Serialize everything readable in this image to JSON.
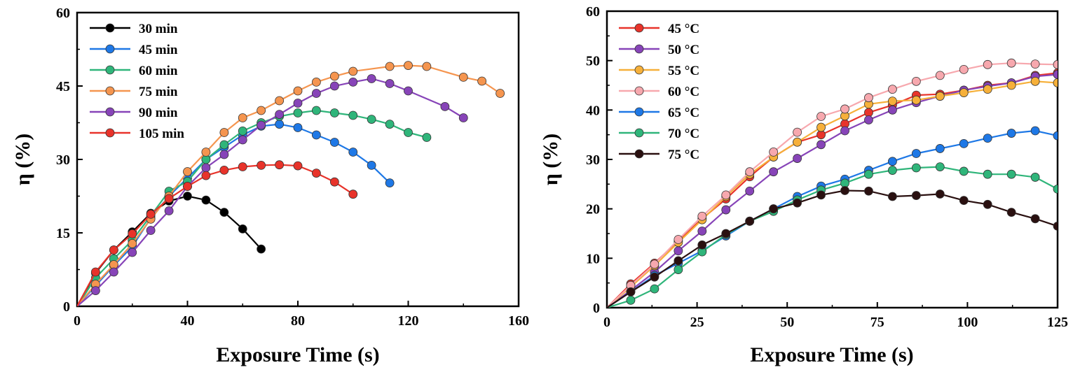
{
  "chart_data": [
    {
      "type": "line",
      "xlabel": "Exposure Time (s)",
      "ylabel": "η (%)",
      "xlim": [
        0,
        160
      ],
      "ylim": [
        0,
        60
      ],
      "xticks": [
        0,
        40,
        80,
        120,
        160
      ],
      "yticks": [
        0,
        15,
        30,
        45,
        60
      ],
      "grid": false,
      "legend_position": "top-left",
      "series": [
        {
          "name": "30 min",
          "color": "#000000",
          "points": [
            [
              0,
              0
            ],
            [
              6.7,
              6.8
            ],
            [
              13.3,
              11.5
            ],
            [
              20,
              15.2
            ],
            [
              26.7,
              19.0
            ],
            [
              33.3,
              21.5
            ],
            [
              40,
              22.5
            ],
            [
              46.7,
              21.7
            ],
            [
              53.3,
              19.2
            ],
            [
              60,
              15.8
            ],
            [
              66.7,
              11.7
            ]
          ]
        },
        {
          "name": "45 min",
          "color": "#1e78e6",
          "points": [
            [
              0,
              0
            ],
            [
              6.7,
              4.2
            ],
            [
              13.3,
              8.3
            ],
            [
              20,
              12.2
            ],
            [
              26.7,
              18.0
            ],
            [
              33.3,
              22.5
            ],
            [
              40,
              26.2
            ],
            [
              46.7,
              30.0
            ],
            [
              53.3,
              32.5
            ],
            [
              60,
              35.0
            ],
            [
              66.7,
              36.8
            ],
            [
              73.3,
              37.2
            ],
            [
              80,
              36.5
            ],
            [
              86.7,
              35.0
            ],
            [
              93.3,
              33.5
            ],
            [
              100,
              31.5
            ],
            [
              106.7,
              28.8
            ],
            [
              113.3,
              25.2
            ]
          ]
        },
        {
          "name": "60 min",
          "color": "#2fb57a",
          "points": [
            [
              0,
              0
            ],
            [
              6.7,
              5.8
            ],
            [
              13.3,
              9.7
            ],
            [
              20,
              13.5
            ],
            [
              26.7,
              18.5
            ],
            [
              33.3,
              23.5
            ],
            [
              40,
              25.5
            ],
            [
              46.7,
              30.0
            ],
            [
              53.3,
              33.0
            ],
            [
              60,
              35.8
            ],
            [
              66.7,
              37.5
            ],
            [
              73.3,
              38.8
            ],
            [
              80,
              39.5
            ],
            [
              86.7,
              40.0
            ],
            [
              93.3,
              39.5
            ],
            [
              100,
              39.0
            ],
            [
              106.7,
              38.2
            ],
            [
              113.3,
              37.2
            ],
            [
              120,
              35.5
            ],
            [
              126.7,
              34.5
            ]
          ]
        },
        {
          "name": "75 min",
          "color": "#f5954f",
          "points": [
            [
              0,
              0
            ],
            [
              6.7,
              4.5
            ],
            [
              13.3,
              8.5
            ],
            [
              20,
              12.8
            ],
            [
              26.7,
              17.8
            ],
            [
              33.3,
              22.5
            ],
            [
              40,
              27.5
            ],
            [
              46.7,
              31.5
            ],
            [
              53.3,
              35.5
            ],
            [
              60,
              38.5
            ],
            [
              66.7,
              40.0
            ],
            [
              73.3,
              42.0
            ],
            [
              80,
              44.0
            ],
            [
              86.7,
              45.8
            ],
            [
              93.3,
              47.0
            ],
            [
              100,
              48.0
            ],
            [
              113.3,
              49.0
            ],
            [
              120,
              49.2
            ],
            [
              126.7,
              49.0
            ],
            [
              140,
              46.8
            ],
            [
              146.7,
              46.0
            ],
            [
              153.3,
              43.5
            ]
          ]
        },
        {
          "name": "90 min",
          "color": "#8744b8",
          "points": [
            [
              0,
              0
            ],
            [
              6.7,
              3.2
            ],
            [
              13.3,
              7.0
            ],
            [
              20,
              11.0
            ],
            [
              26.7,
              15.5
            ],
            [
              33.3,
              19.5
            ],
            [
              40,
              24.5
            ],
            [
              46.7,
              28.3
            ],
            [
              53.3,
              31.0
            ],
            [
              60,
              34.0
            ],
            [
              66.7,
              37.0
            ],
            [
              73.3,
              39.2
            ],
            [
              80,
              41.5
            ],
            [
              86.7,
              43.5
            ],
            [
              93.3,
              45.0
            ],
            [
              100,
              45.8
            ],
            [
              106.7,
              46.5
            ],
            [
              113.3,
              45.5
            ],
            [
              120,
              44.0
            ],
            [
              133.3,
              40.8
            ],
            [
              140,
              38.5
            ]
          ]
        },
        {
          "name": "105 min",
          "color": "#e8332a",
          "points": [
            [
              0,
              0
            ],
            [
              6.7,
              7.0
            ],
            [
              13.3,
              11.5
            ],
            [
              20,
              14.8
            ],
            [
              26.7,
              18.8
            ],
            [
              33.3,
              22.0
            ],
            [
              40,
              24.5
            ],
            [
              46.7,
              26.7
            ],
            [
              53.3,
              27.8
            ],
            [
              60,
              28.5
            ],
            [
              66.7,
              28.8
            ],
            [
              73.3,
              28.9
            ],
            [
              80,
              28.7
            ],
            [
              86.7,
              27.2
            ],
            [
              93.3,
              25.4
            ],
            [
              100,
              22.9
            ]
          ]
        }
      ]
    },
    {
      "type": "line",
      "xlabel": "Exposure Time (s)",
      "ylabel": "η (%)",
      "xlim": [
        0,
        125
      ],
      "ylim": [
        0,
        60
      ],
      "xticks": [
        0,
        25,
        50,
        75,
        100,
        125
      ],
      "yticks": [
        0,
        10,
        20,
        30,
        40,
        50,
        60
      ],
      "grid": false,
      "legend_position": "top-left",
      "series": [
        {
          "name": "45 °C",
          "color": "#e8332a",
          "points": [
            [
              0,
              0
            ],
            [
              6.6,
              4.8
            ],
            [
              13.2,
              9.0
            ],
            [
              19.8,
              13.5
            ],
            [
              26.4,
              18.0
            ],
            [
              33,
              22.0
            ],
            [
              39.6,
              26.5
            ],
            [
              46.2,
              30.5
            ],
            [
              52.8,
              33.5
            ],
            [
              59.4,
              35.0
            ],
            [
              66,
              37.2
            ],
            [
              72.6,
              39.5
            ],
            [
              79.2,
              41.0
            ],
            [
              85.8,
              43.0
            ],
            [
              92.4,
              43.2
            ],
            [
              99,
              44.0
            ],
            [
              105.6,
              45.0
            ],
            [
              112.2,
              45.5
            ],
            [
              118.8,
              47.0
            ],
            [
              125,
              47.5
            ]
          ]
        },
        {
          "name": "50 °C",
          "color": "#8744b8",
          "points": [
            [
              0,
              0
            ],
            [
              6.6,
              3.5
            ],
            [
              13.2,
              7.2
            ],
            [
              19.8,
              11.5
            ],
            [
              26.4,
              15.5
            ],
            [
              33,
              19.8
            ],
            [
              39.6,
              23.6
            ],
            [
              46.2,
              27.5
            ],
            [
              52.8,
              30.2
            ],
            [
              59.4,
              33.0
            ],
            [
              66,
              35.8
            ],
            [
              72.6,
              38.0
            ],
            [
              79.2,
              40.0
            ],
            [
              85.8,
              41.5
            ],
            [
              92.4,
              42.8
            ],
            [
              99,
              44.0
            ],
            [
              105.6,
              44.8
            ],
            [
              112.2,
              45.5
            ],
            [
              118.8,
              46.8
            ],
            [
              125,
              47.2
            ]
          ]
        },
        {
          "name": "55 °C",
          "color": "#f6b03a",
          "points": [
            [
              0,
              0
            ],
            [
              6.6,
              4.2
            ],
            [
              13.2,
              8.5
            ],
            [
              19.8,
              13.2
            ],
            [
              26.4,
              17.8
            ],
            [
              33,
              22.5
            ],
            [
              39.6,
              27.0
            ],
            [
              46.2,
              30.5
            ],
            [
              52.8,
              33.5
            ],
            [
              59.4,
              36.5
            ],
            [
              66,
              38.8
            ],
            [
              72.6,
              41.2
            ],
            [
              79.2,
              41.8
            ],
            [
              85.8,
              42.0
            ],
            [
              92.4,
              42.8
            ],
            [
              99,
              43.5
            ],
            [
              105.6,
              44.2
            ],
            [
              112.2,
              45.0
            ],
            [
              118.8,
              45.8
            ],
            [
              125,
              45.5
            ]
          ]
        },
        {
          "name": "60 °C",
          "color": "#f7a8ae",
          "points": [
            [
              0,
              0
            ],
            [
              6.6,
              4.5
            ],
            [
              13.2,
              8.8
            ],
            [
              19.8,
              13.8
            ],
            [
              26.4,
              18.5
            ],
            [
              33,
              22.8
            ],
            [
              39.6,
              27.5
            ],
            [
              46.2,
              31.5
            ],
            [
              52.8,
              35.5
            ],
            [
              59.4,
              38.7
            ],
            [
              66,
              40.2
            ],
            [
              72.6,
              42.5
            ],
            [
              79.2,
              44.2
            ],
            [
              85.8,
              45.8
            ],
            [
              92.4,
              47.0
            ],
            [
              99,
              48.2
            ],
            [
              105.6,
              49.2
            ],
            [
              112.2,
              49.5
            ],
            [
              118.8,
              49.3
            ],
            [
              125,
              49.2
            ]
          ]
        },
        {
          "name": "65 °C",
          "color": "#1e78e6",
          "points": [
            [
              0,
              0
            ],
            [
              6.6,
              3.2
            ],
            [
              13.2,
              6.5
            ],
            [
              19.8,
              9.0
            ],
            [
              26.4,
              11.5
            ],
            [
              33,
              14.5
            ],
            [
              39.6,
              17.5
            ],
            [
              46.2,
              20.0
            ],
            [
              52.8,
              22.5
            ],
            [
              59.4,
              24.6
            ],
            [
              66,
              26.0
            ],
            [
              72.6,
              27.8
            ],
            [
              79.2,
              29.6
            ],
            [
              85.8,
              31.2
            ],
            [
              92.4,
              32.2
            ],
            [
              99,
              33.2
            ],
            [
              105.6,
              34.3
            ],
            [
              112.2,
              35.3
            ],
            [
              118.8,
              35.8
            ],
            [
              125,
              34.8
            ]
          ]
        },
        {
          "name": "70 °C",
          "color": "#2fb57a",
          "points": [
            [
              0,
              0
            ],
            [
              6.6,
              1.5
            ],
            [
              13.2,
              3.8
            ],
            [
              19.8,
              7.7
            ],
            [
              26.4,
              11.3
            ],
            [
              33,
              14.8
            ],
            [
              39.6,
              17.5
            ],
            [
              46.2,
              19.5
            ],
            [
              52.8,
              21.8
            ],
            [
              59.4,
              23.8
            ],
            [
              66,
              25.2
            ],
            [
              72.6,
              27.0
            ],
            [
              79.2,
              27.8
            ],
            [
              85.8,
              28.3
            ],
            [
              92.4,
              28.5
            ],
            [
              99,
              27.6
            ],
            [
              105.6,
              27.0
            ],
            [
              112.2,
              27.0
            ],
            [
              118.8,
              26.4
            ],
            [
              125,
              24.0
            ]
          ]
        },
        {
          "name": "75 °C",
          "color": "#2a1010",
          "points": [
            [
              0,
              0
            ],
            [
              6.6,
              3.2
            ],
            [
              13.2,
              6.2
            ],
            [
              19.8,
              9.5
            ],
            [
              26.4,
              12.7
            ],
            [
              33,
              15.0
            ],
            [
              39.6,
              17.5
            ],
            [
              46.2,
              20.0
            ],
            [
              52.8,
              21.2
            ],
            [
              59.4,
              22.8
            ],
            [
              66,
              23.7
            ],
            [
              72.6,
              23.6
            ],
            [
              79.2,
              22.5
            ],
            [
              85.8,
              22.7
            ],
            [
              92.4,
              23.0
            ],
            [
              99,
              21.7
            ],
            [
              105.6,
              20.9
            ],
            [
              112.2,
              19.3
            ],
            [
              118.8,
              18.0
            ],
            [
              125,
              16.5
            ]
          ]
        }
      ]
    }
  ]
}
